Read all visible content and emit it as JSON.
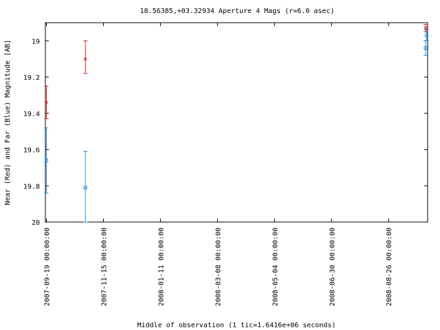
{
  "chart_data": {
    "type": "scatter",
    "title": "18.56385,+03.32934   Aperture 4 Mags (r=6.0 asec)",
    "xlabel": "Middle of observation (1 tic=1.6416e+06 seconds)",
    "ylabel": "Near (Red) and Far (Blue) Magnitude [AB]",
    "y_inverted": true,
    "ylim": [
      20.0,
      18.9
    ],
    "xlim": [
      "2007-09-18",
      "2008-10-04"
    ],
    "x_ticks": [
      "2007-09-19 00:00:00",
      "2007-11-15 00:00:00",
      "2008-01-11 00:00:00",
      "2008-03-08 00:00:00",
      "2008-05-04 00:00:00",
      "2008-06-30 00:00:00",
      "2008-08-26 00:00:00"
    ],
    "y_ticks": [
      "19",
      "19.2",
      "19.4",
      "19.6",
      "19.8",
      "20"
    ],
    "grid": false,
    "legend": "none",
    "series": [
      {
        "color": "#d62020",
        "marker": "x",
        "points": [
          {
            "x": "2007-09-19",
            "y": 19.34,
            "yerr_low": 19.25,
            "yerr_high": 19.43
          },
          {
            "x": "2007-10-28",
            "y": 19.1,
            "yerr_low": 19.0,
            "yerr_high": 19.18
          },
          {
            "x": "2008-10-02",
            "y": 18.93,
            "yerr_low": 18.91,
            "yerr_high": 18.95
          }
        ]
      },
      {
        "color": "#1f8fdf",
        "marker": "square",
        "points": [
          {
            "x": "2007-09-19",
            "y": 19.66,
            "yerr_low": 19.48,
            "yerr_high": 19.84
          },
          {
            "x": "2007-10-28",
            "y": 19.81,
            "yerr_low": 19.61,
            "yerr_high": 20.0
          },
          {
            "x": "2008-10-02",
            "y": 19.04,
            "yerr_low": 19.0,
            "yerr_high": 19.08
          },
          {
            "x": "2008-10-03",
            "y": 18.97,
            "yerr_low": 18.94,
            "yerr_high": 19.0
          }
        ]
      }
    ]
  }
}
